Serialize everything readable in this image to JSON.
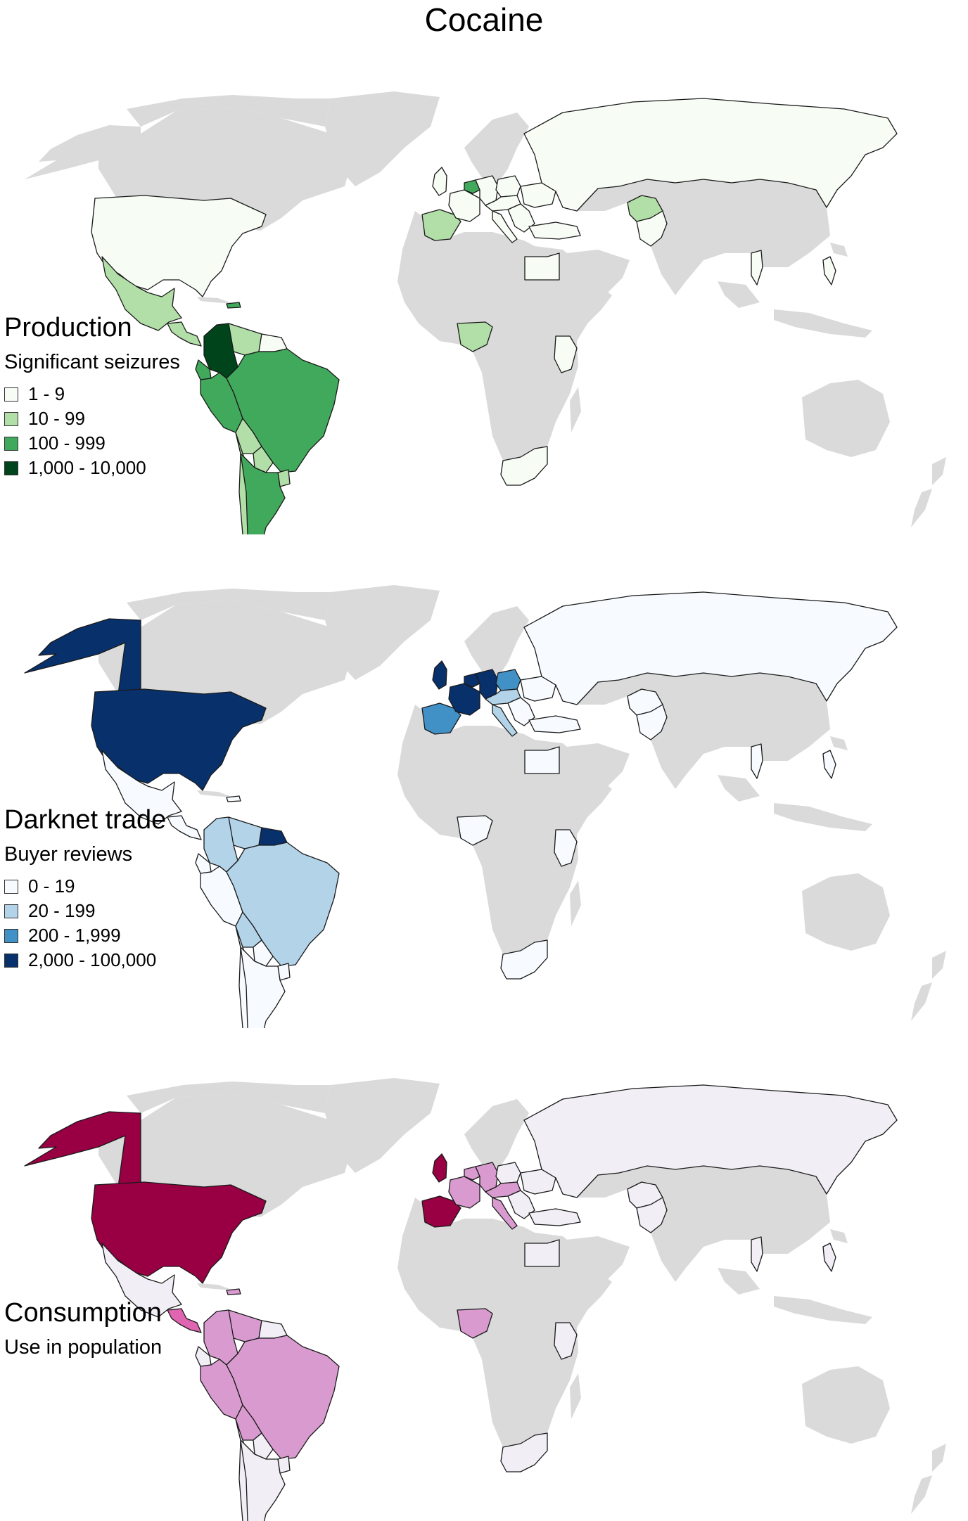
{
  "title": "Cocaine",
  "colors": {
    "land": "#dadada",
    "outline": "#1a1a1a"
  },
  "panels": [
    {
      "name": "production",
      "title": "Production",
      "subtitle": "Significant seizures",
      "legend": [
        {
          "label": "1 - 9",
          "color": "#f7fcf5"
        },
        {
          "label": "10 - 99",
          "color": "#b2dfa8"
        },
        {
          "label": "100 - 999",
          "color": "#41a95b"
        },
        {
          "label": "1,000 - 10,000",
          "color": "#00441b"
        }
      ],
      "countries": {
        "canada": "none",
        "alaska": "none",
        "greenland": "none",
        "usa": "#f7fcf5",
        "mexico": "#b2dfa8",
        "central-america": "#b2dfa8",
        "cuba": "none",
        "hispaniola": "#41a95b",
        "colombia": "#00441b",
        "venezuela": "#b2dfa8",
        "guianas": "#f7fcf5",
        "ecuador": "#41a95b",
        "peru": "#41a95b",
        "brazil": "#41a95b",
        "bolivia": "#b2dfa8",
        "paraguay": "#b2dfa8",
        "uruguay": "#b2dfa8",
        "argentina": "#41a95b",
        "chile": "#b2dfa8",
        "uk": "#f7fcf5",
        "iberia": "#b2dfa8",
        "france": "#f7fcf5",
        "benelux": "#41a95b",
        "germany": "#f7fcf5",
        "poland": "#f7fcf5",
        "central-europe": "#f7fcf5",
        "italy": "#f7fcf5",
        "balkans": "#f7fcf5",
        "ukraine": "#f7fcf5",
        "scandinavia": "none",
        "turkey": "#f7fcf5",
        "russia": "#f7fcf5",
        "egypt": "#f7fcf5",
        "nigeria": "#b2dfa8",
        "kenya": "#f7fcf5",
        "south-africa": "#f7fcf5",
        "afghanistan": "#b2dfa8",
        "pakistan": "#f7fcf5",
        "thailand": "#f7fcf5",
        "philippines": "#f7fcf5"
      }
    },
    {
      "name": "darknet-trade",
      "title": "Darknet trade",
      "subtitle": "Buyer reviews",
      "legend": [
        {
          "label": "0 - 19",
          "color": "#f7fbff"
        },
        {
          "label": "20 - 199",
          "color": "#b3d3e9"
        },
        {
          "label": "200 - 1,999",
          "color": "#4190c6"
        },
        {
          "label": "2,000 - 100,000",
          "color": "#08306b"
        }
      ],
      "countries": {
        "canada": "none",
        "alaska": "#08306b",
        "greenland": "none",
        "usa": "#08306b",
        "mexico": "#f7fbff",
        "central-america": "#f7fbff",
        "cuba": "none",
        "hispaniola": "#f7fbff",
        "colombia": "#b3d3e9",
        "venezuela": "#b3d3e9",
        "guianas": "#08306b",
        "ecuador": "#f7fbff",
        "peru": "#f7fbff",
        "brazil": "#b3d3e9",
        "bolivia": "#b3d3e9",
        "paraguay": "#f7fbff",
        "uruguay": "#f7fbff",
        "argentina": "#f7fbff",
        "chile": "#f7fbff",
        "uk": "#08306b",
        "iberia": "#4190c6",
        "france": "#08306b",
        "benelux": "#08306b",
        "germany": "#08306b",
        "poland": "#4190c6",
        "central-europe": "#b3d3e9",
        "italy": "#b3d3e9",
        "balkans": "#f7fbff",
        "ukraine": "#f7fbff",
        "scandinavia": "none",
        "turkey": "#f7fbff",
        "russia": "#f7fbff",
        "egypt": "#f7fbff",
        "nigeria": "#f7fbff",
        "kenya": "#f7fbff",
        "south-africa": "#f7fbff",
        "afghanistan": "#f7fbff",
        "pakistan": "#f7fbff",
        "thailand": "#f7fbff",
        "philippines": "#f7fbff"
      }
    },
    {
      "name": "consumption",
      "title": "Consumption",
      "subtitle": "Use in population",
      "legend": [],
      "countries": {
        "canada": "none",
        "alaska": "#980043",
        "greenland": "none",
        "usa": "#980043",
        "mexico": "#f1eef6",
        "central-america": "#df65b0",
        "cuba": "none",
        "hispaniola": "#d99bcf",
        "colombia": "#d99bcf",
        "venezuela": "#d99bcf",
        "guianas": "#f1eef6",
        "ecuador": "#f1eef6",
        "peru": "#d99bcf",
        "brazil": "#d99bcf",
        "bolivia": "#d99bcf",
        "paraguay": "#f1eef6",
        "uruguay": "#f1eef6",
        "argentina": "#f1eef6",
        "chile": "#f1eef6",
        "uk": "#980043",
        "iberia": "#980043",
        "france": "#d99bcf",
        "benelux": "#d99bcf",
        "germany": "#d99bcf",
        "poland": "#f1eef6",
        "central-europe": "#d99bcf",
        "italy": "#d99bcf",
        "balkans": "#f1eef6",
        "ukraine": "#f1eef6",
        "scandinavia": "none",
        "turkey": "#f1eef6",
        "russia": "#f1eef6",
        "egypt": "#f1eef6",
        "nigeria": "#d99bcf",
        "kenya": "#f1eef6",
        "south-africa": "#f1eef6",
        "afghanistan": "#f1eef6",
        "pakistan": "#f1eef6",
        "thailand": "#f1eef6",
        "philippines": "#f1eef6"
      }
    }
  ]
}
